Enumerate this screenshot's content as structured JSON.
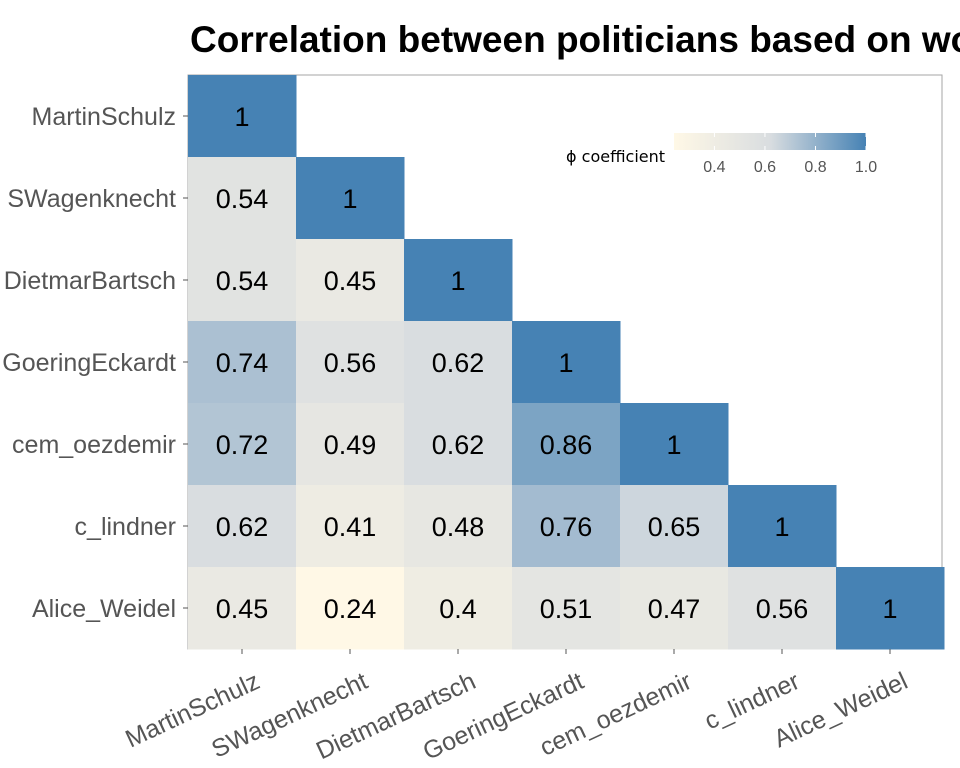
{
  "chart_data": {
    "type": "heatmap",
    "title": "Correlation between politicians based on word",
    "xlabel": "",
    "ylabel": "",
    "categories": [
      "MartinSchulz",
      "SWagenknecht",
      "DietmarBartsch",
      "GoeringEckardt",
      "cem_oezdemir",
      "c_lindner",
      "Alice_Weidel"
    ],
    "matrix": [
      [
        "1"
      ],
      [
        "0.54",
        "1"
      ],
      [
        "0.54",
        "0.45",
        "1"
      ],
      [
        "0.74",
        "0.56",
        "0.62",
        "1"
      ],
      [
        "0.72",
        "0.49",
        "0.62",
        "0.86",
        "1"
      ],
      [
        "0.62",
        "0.41",
        "0.48",
        "0.76",
        "0.65",
        "1"
      ],
      [
        "0.45",
        "0.24",
        "0.4",
        "0.51",
        "0.47",
        "0.56",
        "1"
      ]
    ],
    "layout": "lower-triangle",
    "legend": {
      "title": "ϕ coefficient",
      "ticks": [
        "0.4",
        "0.6",
        "0.8",
        "1.0"
      ],
      "range": [
        0.24,
        1.0
      ],
      "placement": "top-right"
    },
    "colors": {
      "low": "#fff8e6",
      "mid": "#d9dde0",
      "high": "#4682b4"
    },
    "grid": false
  }
}
